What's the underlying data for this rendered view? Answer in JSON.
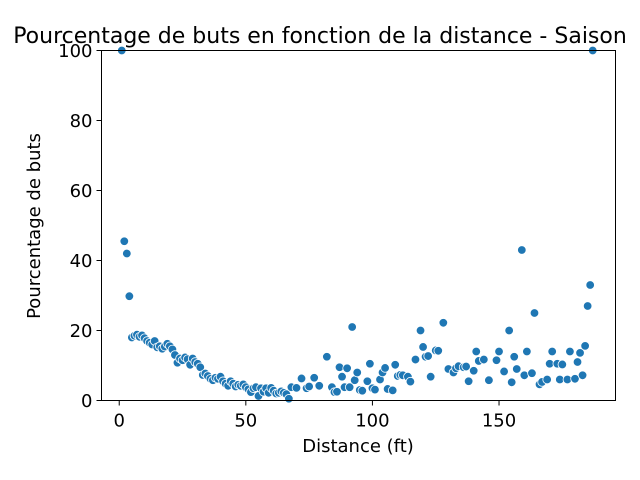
{
  "chart_data": {
    "type": "scatter",
    "title": "Pourcentage de buts en fonction de la distance - Saison",
    "xlabel": "Distance (ft)",
    "ylabel": "Pourcentage de buts",
    "xlim": [
      -7,
      196
    ],
    "ylim": [
      0,
      100
    ],
    "xticks": [
      0,
      50,
      100,
      150
    ],
    "yticks": [
      0,
      20,
      40,
      60,
      80,
      100
    ],
    "grid": false,
    "marker_color": "#1f77b4",
    "points": [
      [
        1,
        100
      ],
      [
        2,
        45.5
      ],
      [
        3,
        42
      ],
      [
        4,
        29.8
      ],
      [
        5,
        18
      ],
      [
        6,
        18.5
      ],
      [
        7,
        18.8
      ],
      [
        8,
        18.2
      ],
      [
        9,
        18.6
      ],
      [
        10,
        17.8
      ],
      [
        11,
        17
      ],
      [
        12,
        16.5
      ],
      [
        13,
        16
      ],
      [
        14,
        17
      ],
      [
        15,
        15.2
      ],
      [
        16,
        15.5
      ],
      [
        17,
        14.8
      ],
      [
        18,
        15.4
      ],
      [
        19,
        16.2
      ],
      [
        20,
        15.5
      ],
      [
        21,
        14.6
      ],
      [
        22,
        13
      ],
      [
        23,
        10.8
      ],
      [
        24,
        12
      ],
      [
        25,
        11.5
      ],
      [
        26,
        12.3
      ],
      [
        27,
        11.8
      ],
      [
        28,
        10.2
      ],
      [
        29,
        12
      ],
      [
        30,
        11
      ],
      [
        31,
        10.5
      ],
      [
        32,
        9.5
      ],
      [
        33,
        7.3
      ],
      [
        34,
        7.7
      ],
      [
        35,
        7
      ],
      [
        36,
        6.2
      ],
      [
        37,
        5.8
      ],
      [
        38,
        6.5
      ],
      [
        39,
        6.2
      ],
      [
        40,
        6.8
      ],
      [
        41,
        5.5
      ],
      [
        42,
        4.8
      ],
      [
        43,
        4.2
      ],
      [
        44,
        5.5
      ],
      [
        45,
        4.8
      ],
      [
        46,
        4
      ],
      [
        47,
        4.5
      ],
      [
        48,
        4.2
      ],
      [
        49,
        4.6
      ],
      [
        50,
        3.8
      ],
      [
        51,
        3.2
      ],
      [
        52,
        2.4
      ],
      [
        53,
        3.5
      ],
      [
        54,
        3.8
      ],
      [
        55,
        1.3
      ],
      [
        56,
        3.5
      ],
      [
        57,
        2.5
      ],
      [
        58,
        3.5
      ],
      [
        59,
        2.2
      ],
      [
        60,
        3.6
      ],
      [
        61,
        2.8
      ],
      [
        62,
        2
      ],
      [
        63,
        2.2
      ],
      [
        64,
        2.6
      ],
      [
        65,
        2.2
      ],
      [
        66,
        1.8
      ],
      [
        67,
        0.5
      ],
      [
        68,
        3.8
      ],
      [
        70,
        3.6
      ],
      [
        72,
        6.3
      ],
      [
        74,
        3.5
      ],
      [
        75,
        4
      ],
      [
        77,
        6.5
      ],
      [
        79,
        4.2
      ],
      [
        82,
        12.5
      ],
      [
        84,
        3.8
      ],
      [
        85,
        2.4
      ],
      [
        86,
        2.5
      ],
      [
        87,
        9.5
      ],
      [
        88,
        6.8
      ],
      [
        89,
        3.8
      ],
      [
        90,
        9.2
      ],
      [
        91,
        3.8
      ],
      [
        92,
        21
      ],
      [
        93,
        5.8
      ],
      [
        94,
        8
      ],
      [
        95,
        3
      ],
      [
        96,
        2.8
      ],
      [
        98,
        5.5
      ],
      [
        99,
        10.5
      ],
      [
        100,
        3.5
      ],
      [
        101,
        3.1
      ],
      [
        103,
        6
      ],
      [
        104,
        8
      ],
      [
        105,
        9.3
      ],
      [
        106,
        3.3
      ],
      [
        108,
        2.9
      ],
      [
        109,
        10.2
      ],
      [
        110,
        7
      ],
      [
        111,
        7.3
      ],
      [
        112,
        7.2
      ],
      [
        114,
        6.8
      ],
      [
        115,
        5.4
      ],
      [
        117,
        11.7
      ],
      [
        119,
        20
      ],
      [
        120,
        15.3
      ],
      [
        121,
        12.5
      ],
      [
        122,
        12.7
      ],
      [
        123,
        6.8
      ],
      [
        125,
        14.3
      ],
      [
        126,
        14.2
      ],
      [
        128,
        22.2
      ],
      [
        130,
        9
      ],
      [
        132,
        8
      ],
      [
        133,
        9.2
      ],
      [
        134,
        9.8
      ],
      [
        136,
        9.5
      ],
      [
        137,
        9.7
      ],
      [
        138,
        5.5
      ],
      [
        140,
        8.5
      ],
      [
        141,
        14
      ],
      [
        142,
        11.3
      ],
      [
        144,
        11.7
      ],
      [
        146,
        5.8
      ],
      [
        149,
        11.5
      ],
      [
        150,
        14
      ],
      [
        152,
        8.3
      ],
      [
        154,
        20
      ],
      [
        155,
        5.2
      ],
      [
        156,
        12.5
      ],
      [
        157,
        9
      ],
      [
        159,
        43
      ],
      [
        160,
        7.2
      ],
      [
        161,
        14
      ],
      [
        163,
        7.8
      ],
      [
        164,
        25
      ],
      [
        166,
        4.6
      ],
      [
        167,
        5.3
      ],
      [
        169,
        6
      ],
      [
        170,
        10.5
      ],
      [
        171,
        14
      ],
      [
        173,
        10.5
      ],
      [
        174,
        6
      ],
      [
        175,
        10.3
      ],
      [
        177,
        6
      ],
      [
        178,
        14
      ],
      [
        180,
        6.2
      ],
      [
        181,
        11
      ],
      [
        182,
        13.6
      ],
      [
        183,
        7.2
      ],
      [
        184,
        15.6
      ],
      [
        185,
        27
      ],
      [
        186,
        33
      ],
      [
        187,
        100
      ]
    ]
  }
}
